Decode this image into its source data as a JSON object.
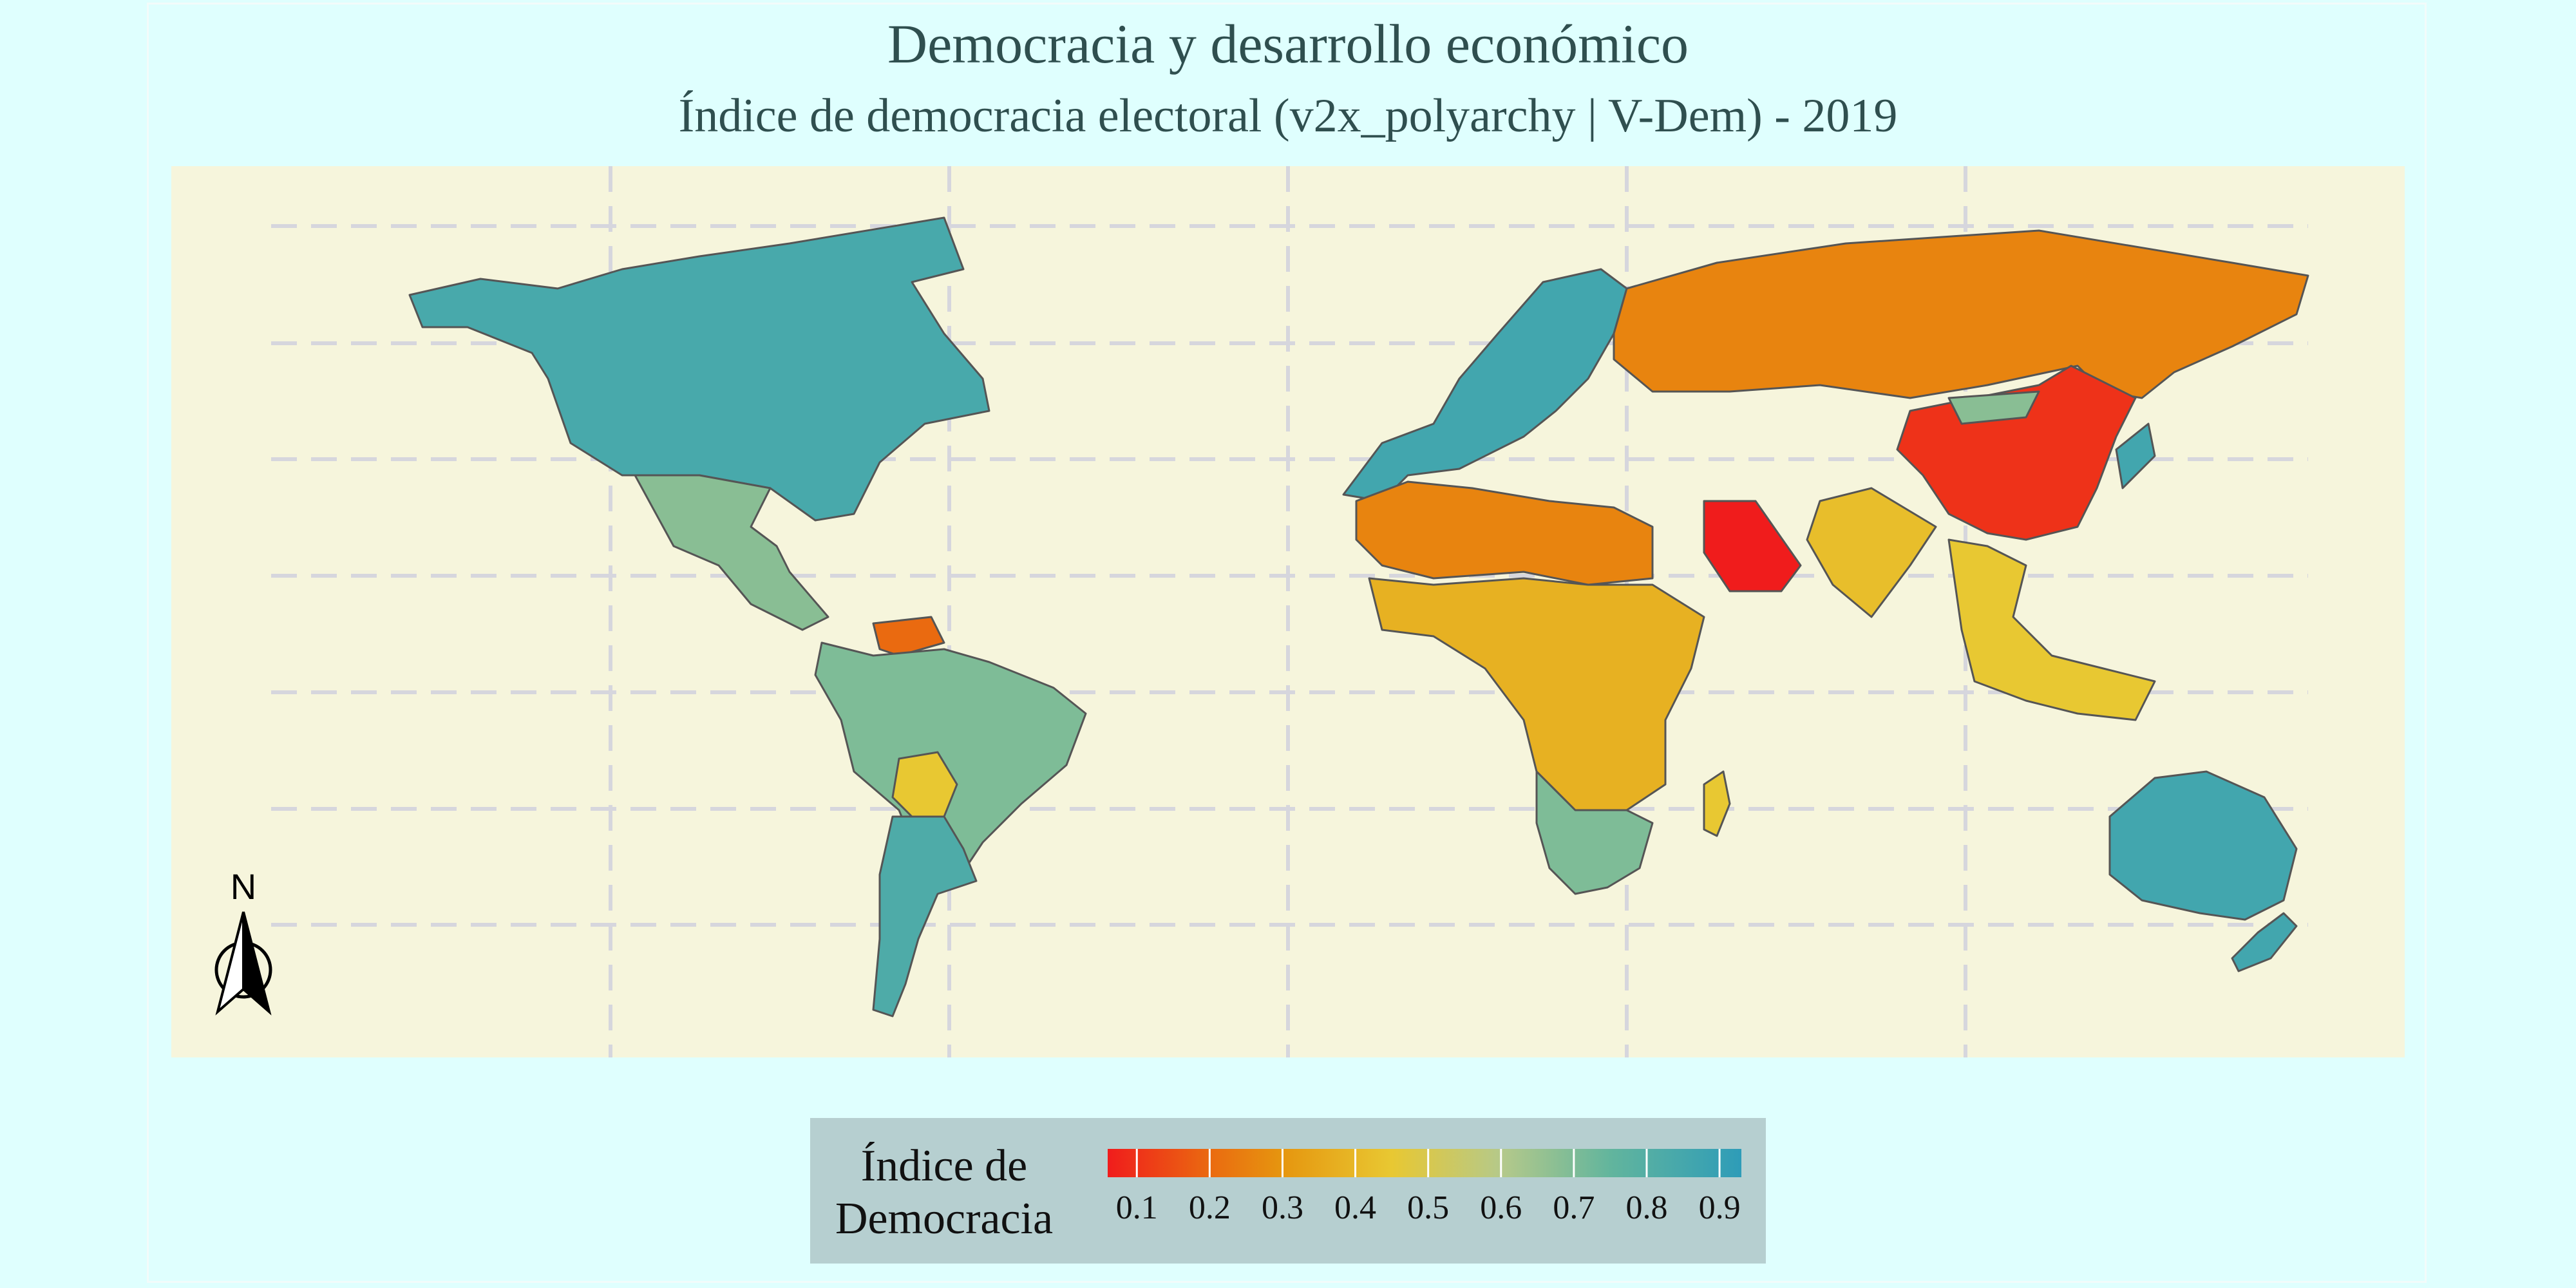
{
  "title": "Democracia y desarrollo económico",
  "subtitle": "Índice de democracia electoral (v2x_polyarchy | V-Dem) - 2019",
  "legend": {
    "title_line1": "Índice de",
    "title_line2": "Democracia",
    "ticks": [
      "0.1",
      "0.2",
      "0.3",
      "0.4",
      "0.5",
      "0.6",
      "0.7",
      "0.8",
      "0.9"
    ],
    "range": [
      0.06,
      0.93
    ],
    "stops": [
      {
        "v": 0.06,
        "c": "#f01c1c"
      },
      {
        "v": 0.2,
        "c": "#ea6a10"
      },
      {
        "v": 0.3,
        "c": "#e6960f"
      },
      {
        "v": 0.45,
        "c": "#e8c832"
      },
      {
        "v": 0.6,
        "c": "#b5c98a"
      },
      {
        "v": 0.75,
        "c": "#62b59d"
      },
      {
        "v": 0.93,
        "c": "#2e9cb8"
      }
    ]
  },
  "north_arrow_label": "N",
  "colors": {
    "background": "#dffffe",
    "ocean": "#f6f5dc",
    "grid": "#d6d6dd",
    "country_stroke": "#555555"
  },
  "regions": [
    {
      "name": "Canada / United States",
      "value": 0.84
    },
    {
      "name": "Mexico / Central America",
      "value": 0.68
    },
    {
      "name": "Venezuela",
      "value": 0.2
    },
    {
      "name": "Brazil",
      "value": 0.7
    },
    {
      "name": "Bolivia",
      "value": 0.45
    },
    {
      "name": "Argentina / Chile",
      "value": 0.82
    },
    {
      "name": "Western Europe",
      "value": 0.86
    },
    {
      "name": "Russia",
      "value": 0.26
    },
    {
      "name": "China",
      "value": 0.1
    },
    {
      "name": "Mongolia",
      "value": 0.68
    },
    {
      "name": "India",
      "value": 0.42
    },
    {
      "name": "Saudi Arabia",
      "value": 0.02
    },
    {
      "name": "North Africa",
      "value": 0.26
    },
    {
      "name": "Sub-Saharan Africa",
      "value": 0.38
    },
    {
      "name": "Southern Africa",
      "value": 0.7
    },
    {
      "name": "Madagascar",
      "value": 0.45
    },
    {
      "name": "Southeast Asia",
      "value": 0.45
    },
    {
      "name": "Australia / New Zealand",
      "value": 0.86
    }
  ]
}
